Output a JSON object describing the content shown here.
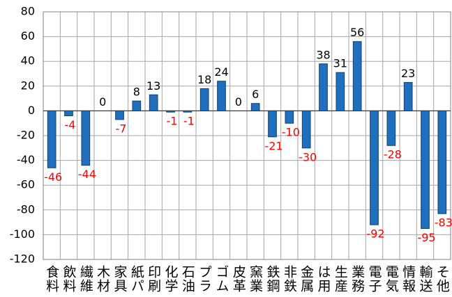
{
  "chart_data": {
    "type": "bar",
    "categories": [
      "食料",
      "飲料",
      "繊維",
      "木材",
      "家具",
      "紙パ",
      "印刷",
      "化学",
      "石油",
      "プラ",
      "ゴム",
      "皮革",
      "窯業",
      "鉄鋼",
      "非鉄",
      "金属",
      "は用",
      "生産",
      "業務",
      "電子",
      "電気",
      "情報",
      "輸送",
      "そ他"
    ],
    "values": [
      -46,
      -4,
      -44,
      0,
      -7,
      8,
      13,
      -1,
      -1,
      18,
      24,
      0,
      6,
      -21,
      -10,
      -30,
      38,
      31,
      56,
      -92,
      -28,
      23,
      -95,
      -83
    ],
    "color": "#1f6fbf",
    "positive_label_color": "#000000",
    "negative_label_color": "#ff0000",
    "ylim": [
      -120,
      80
    ],
    "yticks": [
      -120,
      -100,
      -80,
      -60,
      -40,
      -20,
      0,
      20,
      40,
      60,
      80
    ],
    "grid": true
  }
}
